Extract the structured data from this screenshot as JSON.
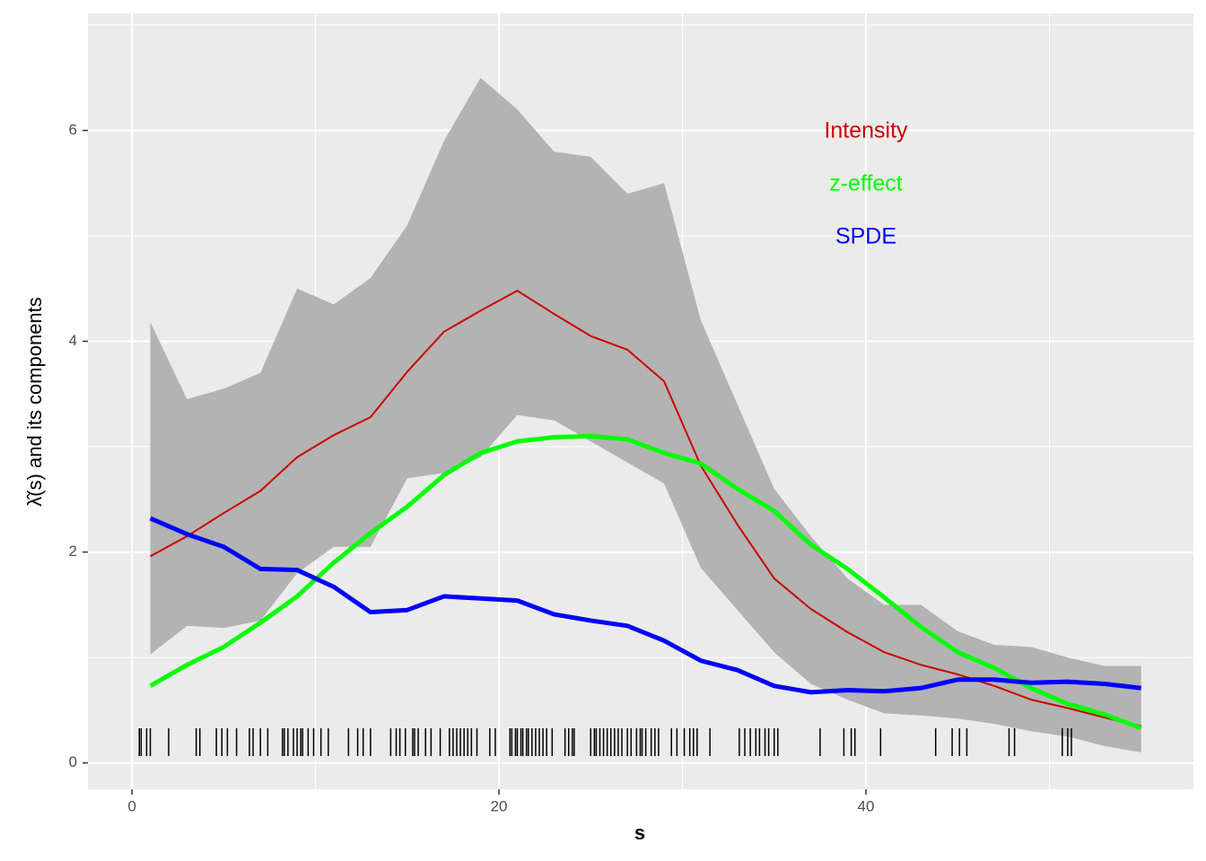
{
  "chart_data": {
    "type": "line",
    "xlabel": "s",
    "ylabel": "λ̂(s)  and its components",
    "x": [
      1,
      3,
      5,
      7,
      9,
      11,
      13,
      15,
      17,
      19,
      21,
      23,
      25,
      27,
      29,
      31,
      33,
      35,
      37,
      39,
      41,
      43,
      45,
      47,
      49,
      51,
      53,
      55
    ],
    "series": [
      {
        "name": "Intensity",
        "color": "#cd0000",
        "width": 2,
        "values": [
          1.96,
          2.15,
          2.37,
          2.58,
          2.9,
          3.11,
          3.28,
          3.71,
          4.09,
          4.29,
          4.48,
          4.26,
          4.05,
          3.92,
          3.62,
          2.82,
          2.26,
          1.75,
          1.46,
          1.24,
          1.05,
          0.93,
          0.84,
          0.73,
          0.6,
          0.52,
          0.43,
          0.35
        ]
      },
      {
        "name": "z-effect",
        "color": "#00ff00",
        "width": 5,
        "values": [
          0.73,
          0.93,
          1.1,
          1.33,
          1.58,
          1.9,
          2.18,
          2.43,
          2.73,
          2.94,
          3.05,
          3.09,
          3.1,
          3.07,
          2.94,
          2.84,
          2.6,
          2.39,
          2.07,
          1.84,
          1.57,
          1.29,
          1.05,
          0.9,
          0.71,
          0.56,
          0.46,
          0.33
        ]
      },
      {
        "name": "SPDE",
        "color": "#0000ff",
        "width": 5,
        "values": [
          2.32,
          2.17,
          2.05,
          1.84,
          1.83,
          1.67,
          1.43,
          1.45,
          1.58,
          1.56,
          1.54,
          1.41,
          1.35,
          1.3,
          1.16,
          0.97,
          0.88,
          0.73,
          0.67,
          0.69,
          0.68,
          0.71,
          0.79,
          0.79,
          0.76,
          0.77,
          0.75,
          0.71
        ]
      }
    ],
    "band": {
      "color": "#b3b3b3",
      "lower": [
        1.03,
        1.3,
        1.28,
        1.35,
        1.8,
        2.05,
        2.05,
        2.7,
        2.75,
        2.9,
        3.3,
        3.25,
        3.05,
        2.85,
        2.65,
        1.85,
        1.45,
        1.05,
        0.75,
        0.6,
        0.47,
        0.45,
        0.42,
        0.37,
        0.3,
        0.25,
        0.16,
        0.1
      ],
      "upper": [
        4.18,
        3.45,
        3.55,
        3.7,
        4.5,
        4.35,
        4.6,
        5.1,
        5.9,
        6.5,
        6.2,
        5.8,
        5.75,
        5.4,
        5.5,
        4.2,
        3.4,
        2.6,
        2.15,
        1.75,
        1.5,
        1.5,
        1.25,
        1.12,
        1.1,
        1.0,
        0.92,
        0.92
      ]
    },
    "rug": [
      0.4,
      0.5,
      0.8,
      1.0,
      2.0,
      3.5,
      3.7,
      4.6,
      4.9,
      5.2,
      5.7,
      6.4,
      6.6,
      7.0,
      7.4,
      8.2,
      8.3,
      8.5,
      8.8,
      9.0,
      9.2,
      9.3,
      9.6,
      9.9,
      10.3,
      10.7,
      11.8,
      12.3,
      12.6,
      13.0,
      14.1,
      14.4,
      14.6,
      14.9,
      15.3,
      15.4,
      15.6,
      16.0,
      16.3,
      16.8,
      17.3,
      17.5,
      17.7,
      17.9,
      18.1,
      18.3,
      18.5,
      18.8,
      19.5,
      19.8,
      20.6,
      20.7,
      20.9,
      21.0,
      21.2,
      21.3,
      21.5,
      21.6,
      21.8,
      22.0,
      22.2,
      22.4,
      22.6,
      22.9,
      23.6,
      23.8,
      24.0,
      24.1,
      25.0,
      25.2,
      25.3,
      25.5,
      25.7,
      25.9,
      26.1,
      26.3,
      26.5,
      26.7,
      27.0,
      27.2,
      27.5,
      27.7,
      27.8,
      28.0,
      28.3,
      28.5,
      28.7,
      29.4,
      29.7,
      30.1,
      30.4,
      30.6,
      30.8,
      31.5,
      33.1,
      33.4,
      33.7,
      34.0,
      34.2,
      34.5,
      34.7,
      35.0,
      35.2,
      37.5,
      38.8,
      39.2,
      39.4,
      40.8,
      43.8,
      44.7,
      45.1,
      45.5,
      47.8,
      48.1,
      50.7,
      51.0,
      51.2
    ],
    "xlim": [
      -2.4,
      57.85
    ],
    "ylim": [
      -0.25,
      7.11
    ],
    "xticks": [
      0,
      20,
      40
    ],
    "yticks": [
      0,
      2,
      4,
      6
    ],
    "grid": true
  }
}
